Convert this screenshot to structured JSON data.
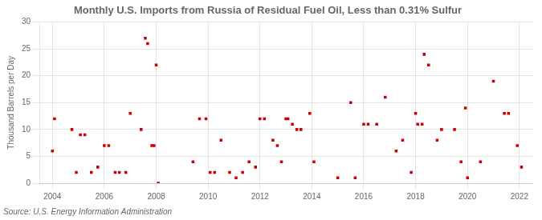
{
  "chart_data": {
    "type": "scatter",
    "title": "Monthly U.S. Imports from Russia of Residual Fuel Oil, Less than 0.31% Sulfur",
    "ylabel": "Thousand Barrels per Day",
    "source": "Source: U.S. Energy Information Administration",
    "color": "#cc0000",
    "marker": "square",
    "grid": true,
    "xlim": [
      2003.5,
      2022.5
    ],
    "xticks": [
      2004,
      2006,
      2008,
      2010,
      2012,
      2014,
      2016,
      2018,
      2020,
      2022
    ],
    "ylim": [
      0,
      30
    ],
    "yticks": [
      0,
      5,
      10,
      15,
      20,
      25,
      30
    ],
    "x": [
      2004.0,
      2004.08,
      2004.75,
      2004.92,
      2005.08,
      2005.25,
      2005.5,
      2005.75,
      2006.0,
      2006.17,
      2006.42,
      2006.58,
      2006.83,
      2007.0,
      2007.42,
      2007.58,
      2007.67,
      2007.83,
      2007.92,
      2008.0,
      2008.08,
      2009.42,
      2009.67,
      2009.92,
      2010.08,
      2010.25,
      2010.5,
      2010.83,
      2011.08,
      2011.33,
      2011.58,
      2011.83,
      2012.0,
      2012.17,
      2012.5,
      2012.67,
      2012.83,
      2013.0,
      2013.08,
      2013.25,
      2013.42,
      2013.58,
      2013.92,
      2014.08,
      2015.0,
      2015.5,
      2015.67,
      2016.0,
      2016.17,
      2016.5,
      2016.83,
      2017.25,
      2017.5,
      2017.83,
      2018.0,
      2018.08,
      2018.25,
      2018.33,
      2018.5,
      2018.83,
      2019.0,
      2019.5,
      2019.75,
      2019.92,
      2020.0,
      2020.5,
      2021.0,
      2021.42,
      2021.58,
      2021.92,
      2022.08
    ],
    "values": [
      6,
      12,
      10,
      2,
      9,
      9,
      2,
      3,
      7,
      7,
      2,
      2,
      2,
      13,
      10,
      27,
      26,
      7,
      7,
      22,
      0,
      4,
      12,
      12,
      2,
      2,
      8,
      2,
      1,
      2,
      4,
      3,
      12,
      12,
      8,
      7,
      4,
      12,
      12,
      11,
      10,
      10,
      13,
      4,
      1,
      15,
      1,
      11,
      11,
      11,
      16,
      6,
      8,
      2,
      13,
      11,
      11,
      24,
      22,
      8,
      10,
      10,
      4,
      14,
      1,
      4,
      19,
      13,
      13,
      7,
      3
    ]
  }
}
